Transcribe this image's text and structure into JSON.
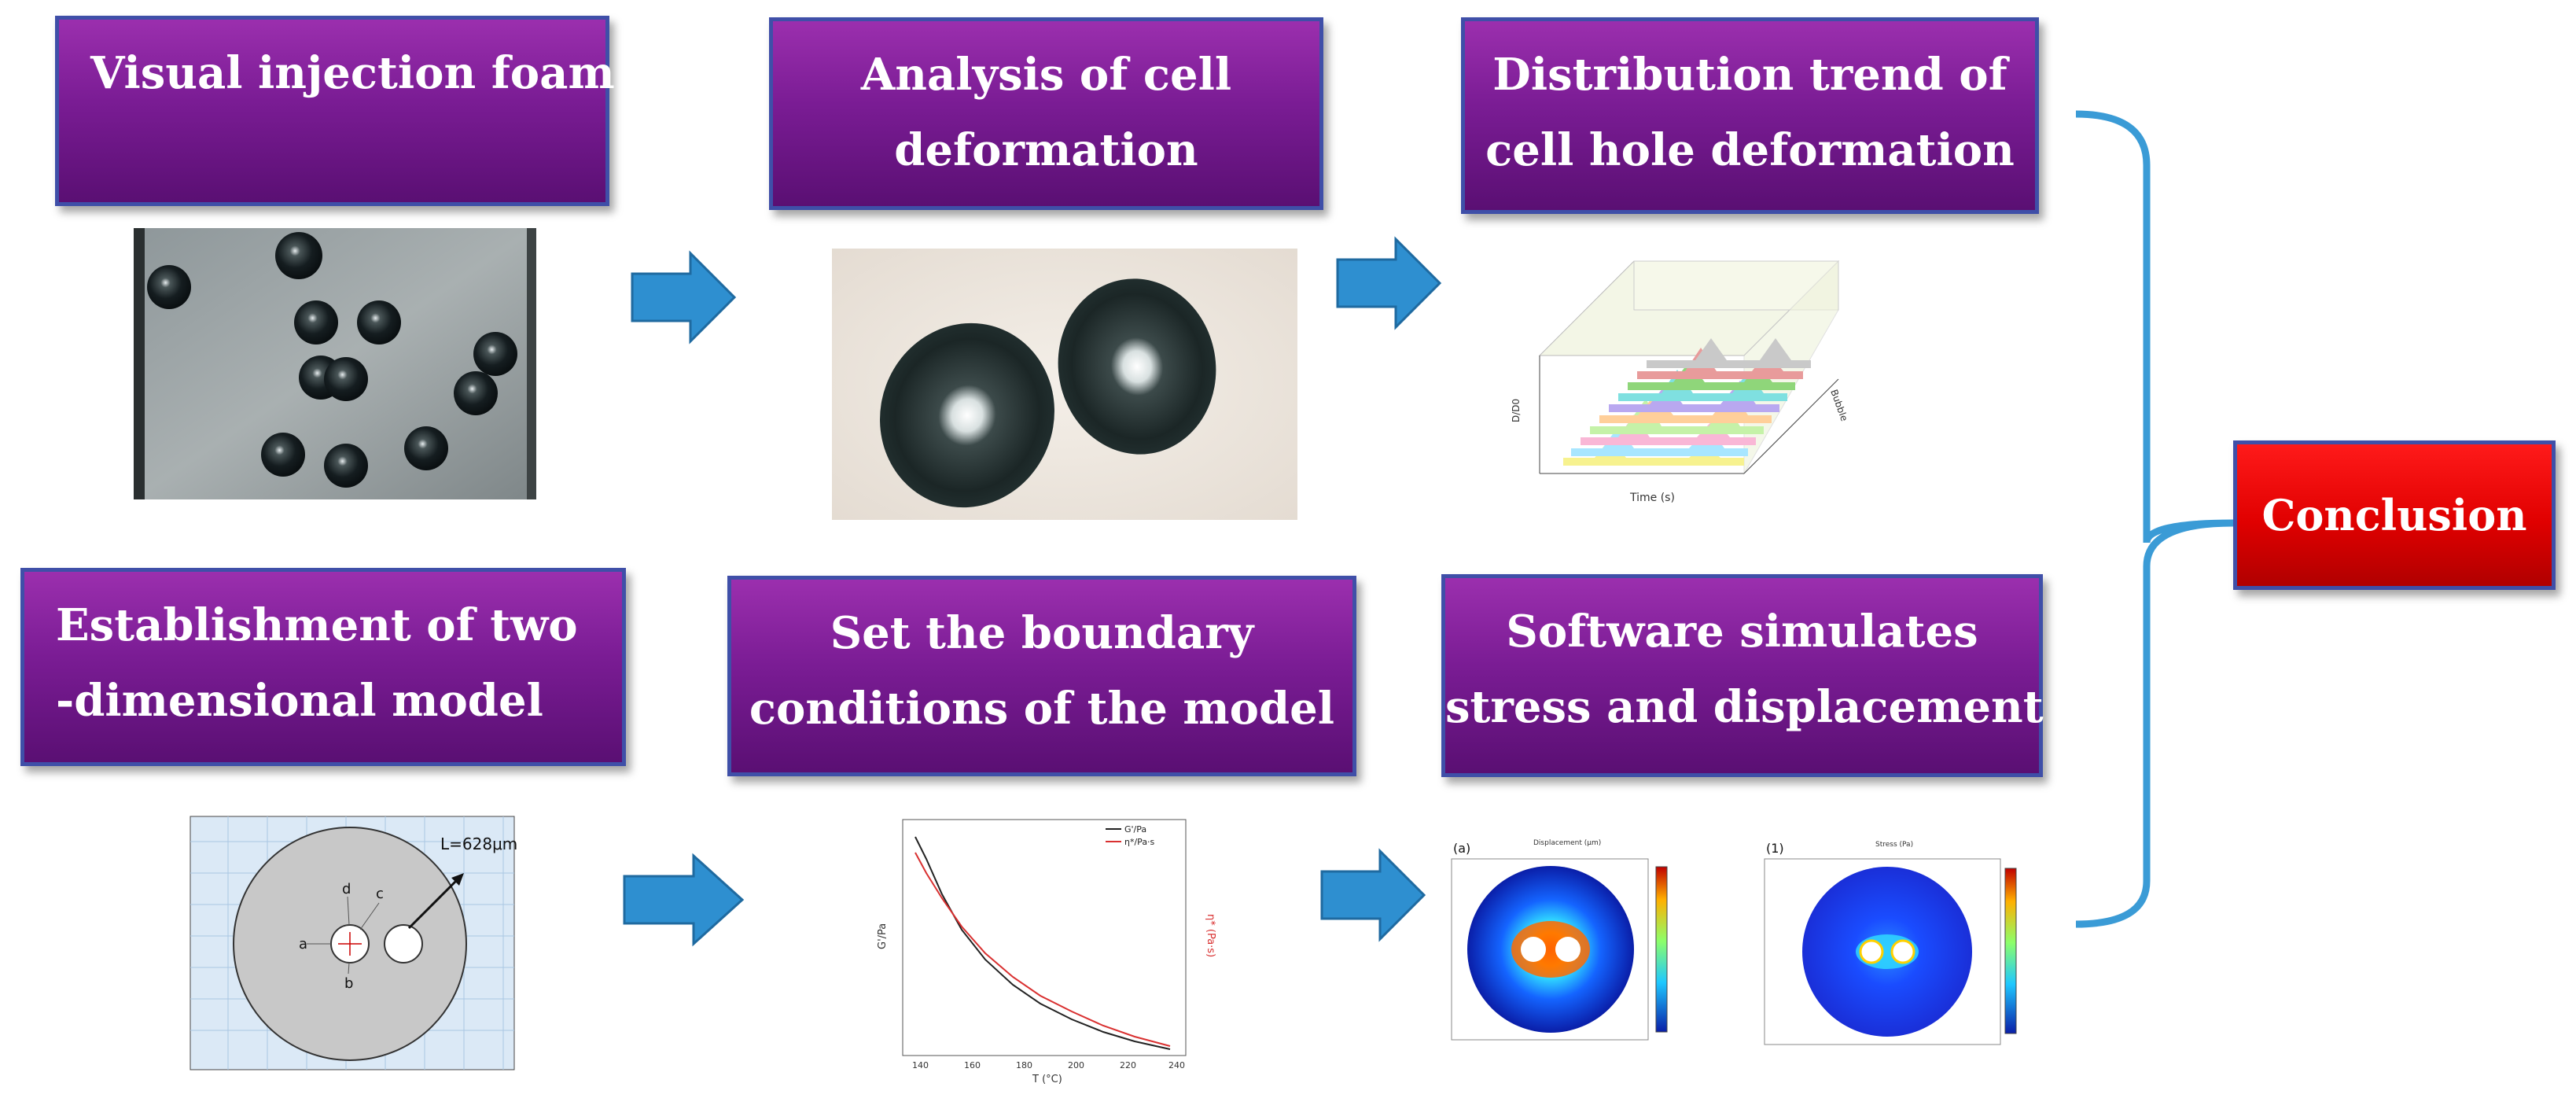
{
  "steps": {
    "visual_injection": {
      "line1": "Visual injection foam"
    },
    "cell_deformation": {
      "line1": "Analysis of cell",
      "line2": "deformation"
    },
    "distribution_trend": {
      "line1": "Distribution trend of",
      "line2": "cell hole deformation"
    },
    "two_d_model": {
      "line1": "Establishment of two",
      "line2": "-dimensional model"
    },
    "boundary_conditions": {
      "line1": "Set the boundary",
      "line2": "conditions of the model"
    },
    "software_simulates": {
      "line1": "Software simulates",
      "line2": "stress and displacement"
    }
  },
  "conclusion": {
    "label": "Conclusion"
  },
  "model_figure": {
    "length_label": "L=628μm",
    "point_labels": [
      "a",
      "b",
      "c",
      "d"
    ]
  },
  "trend_chart": {
    "xlabel": "Time (s)",
    "ylabel": "D/D0",
    "zlabel": "Bubble"
  },
  "boundary_chart": {
    "xlabel": "T (°C)",
    "ylabel_left": "G'/Pa",
    "ylabel_right": "η* (Pa·s)",
    "legend": [
      "G'/Pa",
      "η*/Pa·s"
    ],
    "x_ticks": [
      "140",
      "160",
      "180",
      "200",
      "220",
      "240"
    ]
  },
  "sim_figures": {
    "panel_a": {
      "tag": "(a)",
      "title": "Displacement (μm)"
    },
    "panel_b": {
      "tag": "(1)",
      "title": "Stress (Pa)"
    }
  },
  "colors": {
    "box_purple": "#7a1c94",
    "box_border": "#3f4fa8",
    "arrow_blue": "#2e8fd0",
    "brace_blue": "#3a9bd6",
    "conclusion_red": "#e00000"
  }
}
